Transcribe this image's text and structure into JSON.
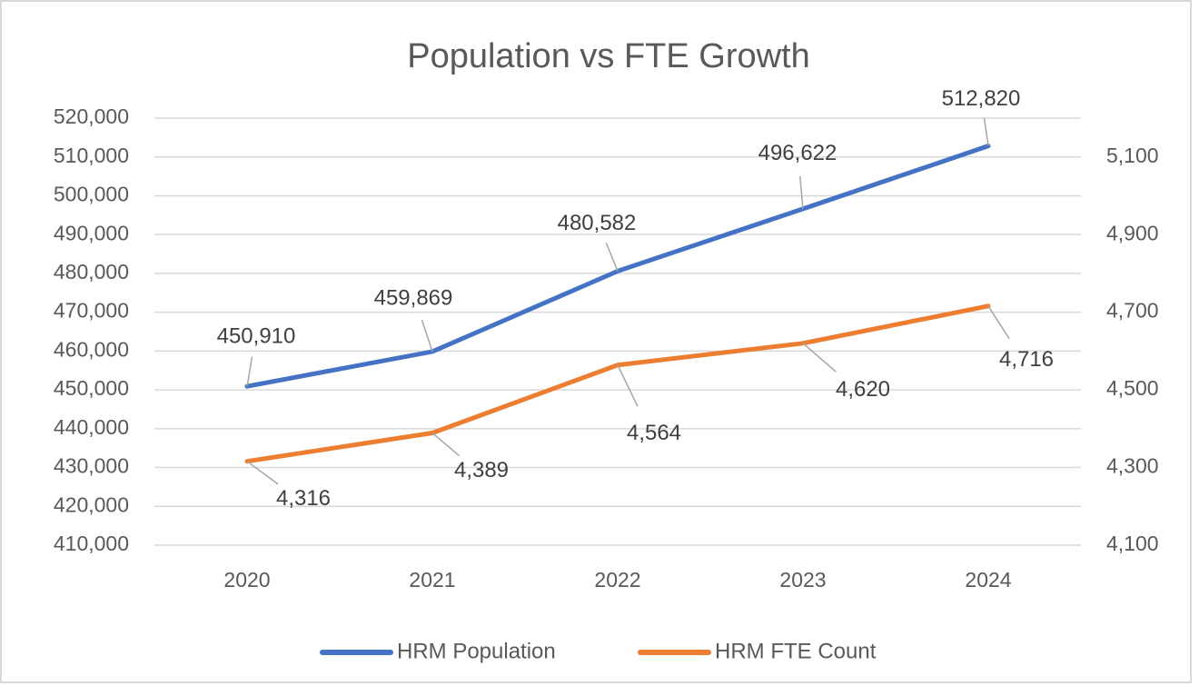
{
  "chart_data": {
    "type": "line",
    "title": "Population vs FTE Growth",
    "categories": [
      "2020",
      "2021",
      "2022",
      "2023",
      "2024"
    ],
    "series": [
      {
        "name": "HRM Population",
        "color": "#4472c4",
        "values": [
          450910,
          459869,
          480582,
          496622,
          512820
        ],
        "value_labels": [
          "450,910",
          "459,869",
          "480,582",
          "496,622",
          "512,820"
        ]
      },
      {
        "name": "HRM FTE Count",
        "color": "#ed7d31",
        "axis": "y2",
        "values": [
          4316,
          4389,
          4564,
          4620,
          4716
        ],
        "value_labels": [
          "4,316",
          "4,389",
          "4,564",
          "4,620",
          "4,716"
        ]
      }
    ],
    "ylim": [
      410000,
      520000
    ],
    "yticks": [
      {
        "value": 410000,
        "label": "410,000"
      },
      {
        "value": 420000,
        "label": "420,000"
      },
      {
        "value": 430000,
        "label": "430,000"
      },
      {
        "value": 440000,
        "label": "440,000"
      },
      {
        "value": 450000,
        "label": "450,000"
      },
      {
        "value": 460000,
        "label": "460,000"
      },
      {
        "value": 470000,
        "label": "470,000"
      },
      {
        "value": 480000,
        "label": "480,000"
      },
      {
        "value": 490000,
        "label": "490,000"
      },
      {
        "value": 500000,
        "label": "500,000"
      },
      {
        "value": 510000,
        "label": "510,000"
      },
      {
        "value": 520000,
        "label": "520,000"
      }
    ],
    "y2lim": [
      4100,
      5200
    ],
    "y2ticks": [
      {
        "value": 4100,
        "label": "4,100"
      },
      {
        "value": 4300,
        "label": "4,300"
      },
      {
        "value": 4500,
        "label": "4,500"
      },
      {
        "value": 4700,
        "label": "4,700"
      },
      {
        "value": 4900,
        "label": "4,900"
      },
      {
        "value": 5100,
        "label": "5,100"
      }
    ],
    "grid": true,
    "legend": "bottom"
  }
}
